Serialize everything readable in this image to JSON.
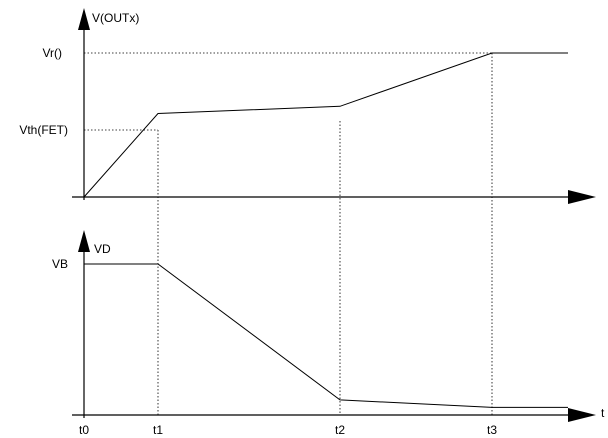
{
  "top_plot": {
    "y_axis_label": "V(OUTx)",
    "y_ticks": [
      "Vr()",
      "Vth(FET)"
    ],
    "x_axis_label": "",
    "waveform": [
      {
        "t": "t0",
        "level": 0.0
      },
      {
        "t": "t1",
        "level": 0.58
      },
      {
        "t": "t2",
        "level": 0.63
      },
      {
        "t": "t3",
        "level": 1.0
      },
      {
        "t": "end",
        "level": 1.0
      }
    ]
  },
  "bottom_plot": {
    "y_axis_label": "VD",
    "y_ticks": [
      "VB"
    ],
    "x_axis_label": "t",
    "waveform": [
      {
        "t": "t0",
        "level": 1.0
      },
      {
        "t": "t1",
        "level": 1.0
      },
      {
        "t": "t2",
        "level": 0.1
      },
      {
        "t": "t3",
        "level": 0.05
      },
      {
        "t": "end",
        "level": 0.05
      }
    ]
  },
  "time_labels": [
    "t0",
    "t1",
    "t2",
    "t3"
  ],
  "colors": {
    "line": "#000000",
    "background": "#ffffff"
  }
}
